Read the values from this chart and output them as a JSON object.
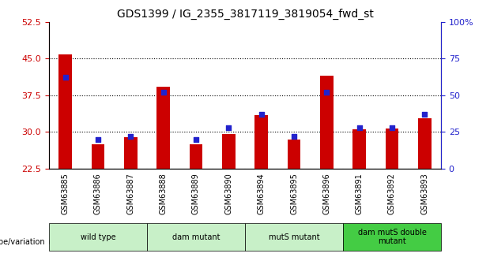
{
  "title": "GDS1399 / IG_2355_3817119_3819054_fwd_st",
  "samples": [
    "GSM63885",
    "GSM63886",
    "GSM63887",
    "GSM63888",
    "GSM63889",
    "GSM63890",
    "GSM63894",
    "GSM63895",
    "GSM63896",
    "GSM63891",
    "GSM63892",
    "GSM63893"
  ],
  "transformed_count": [
    45.8,
    27.5,
    29.0,
    39.2,
    27.5,
    29.5,
    33.5,
    28.5,
    41.5,
    30.5,
    30.7,
    32.8
  ],
  "percentile_rank": [
    62,
    20,
    22,
    52,
    20,
    28,
    37,
    22,
    52,
    28,
    28,
    37
  ],
  "ylim_left": [
    22.5,
    52.5
  ],
  "ylim_right": [
    0,
    100
  ],
  "yticks_left": [
    22.5,
    30,
    37.5,
    45,
    52.5
  ],
  "yticks_right": [
    0,
    25,
    50,
    75,
    100
  ],
  "groups": [
    {
      "label": "wild type",
      "start": 0,
      "end": 3,
      "color": "#c8f0c8"
    },
    {
      "label": "dam mutant",
      "start": 3,
      "end": 6,
      "color": "#c8f0c8"
    },
    {
      "label": "mutS mutant",
      "start": 6,
      "end": 9,
      "color": "#c8f0c8"
    },
    {
      "label": "dam mutS double\nmutant",
      "start": 9,
      "end": 12,
      "color": "#44cc44"
    }
  ],
  "bar_color": "#cc0000",
  "dot_color": "#2222cc",
  "bar_width": 0.4,
  "baseline": 22.5,
  "grid_yticks": [
    30,
    37.5,
    45
  ],
  "xlabel_color": "#cc0000",
  "ylabel_right_color": "#2222cc"
}
